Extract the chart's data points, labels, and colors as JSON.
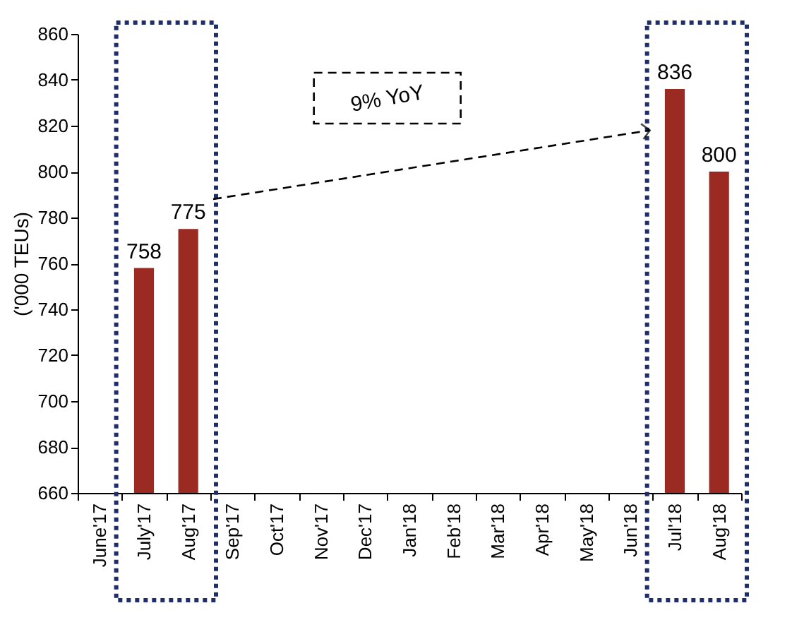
{
  "chart_data": {
    "type": "bar",
    "ylabel": "('000 TEUs)",
    "categories": [
      "June'17",
      "July'17",
      "Aug'17",
      "Sep'17",
      "Oct'17",
      "Nov'17",
      "Dec'17",
      "Jan'18",
      "Feb'18",
      "Mar'18",
      "Apr'18",
      "May'18",
      "Jun'18",
      "Jul'18",
      "Aug'18"
    ],
    "values": [
      null,
      758,
      775,
      null,
      null,
      null,
      null,
      null,
      null,
      null,
      null,
      null,
      null,
      836,
      800
    ],
    "color": "#9b2a22",
    "data_labels": true,
    "ylim": [
      660,
      860
    ],
    "yticks": [
      660,
      680,
      700,
      720,
      740,
      760,
      780,
      800,
      820,
      840,
      860
    ],
    "grid": false,
    "annotations": [
      "9% YoY"
    ]
  }
}
